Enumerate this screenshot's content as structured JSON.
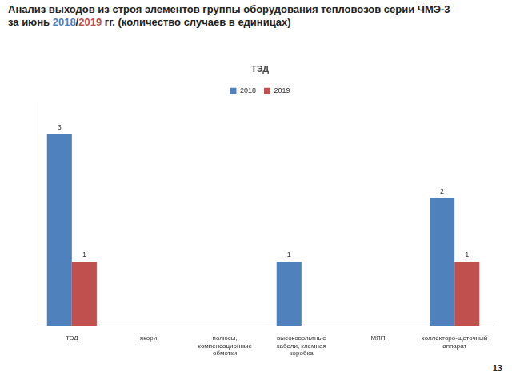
{
  "header": {
    "lines": [
      [
        {
          "text": "Анализ выходов из строя элементов группы оборудования тепловозов серии ЧМЭ-3"
        }
      ],
      [
        {
          "text": "за июнь "
        },
        {
          "text": "2018",
          "color": "#4f81bd"
        },
        {
          "text": "/"
        },
        {
          "text": "2019",
          "color": "#c0504d"
        },
        {
          "text": " гг. (количество случаев в единицах)"
        }
      ]
    ]
  },
  "page_number": "13",
  "chart_data": {
    "type": "bar",
    "title": "ТЭД",
    "categories": [
      "ТЭД",
      "якори",
      "полюсы, компенсационные обмотки",
      "высоковольтные кабели, клемная коробка",
      "МЯП",
      "коллекторо-щеточный аппарат"
    ],
    "series": [
      {
        "name": "2018",
        "color": "#4f81bd",
        "values": [
          3,
          null,
          null,
          1,
          null,
          2
        ]
      },
      {
        "name": "2019",
        "color": "#c0504d",
        "values": [
          1,
          null,
          null,
          null,
          null,
          1
        ]
      }
    ],
    "ylim": [
      0,
      3.5
    ],
    "grid": false,
    "legend": "top",
    "data_labels": true,
    "tick_labels": "x"
  }
}
